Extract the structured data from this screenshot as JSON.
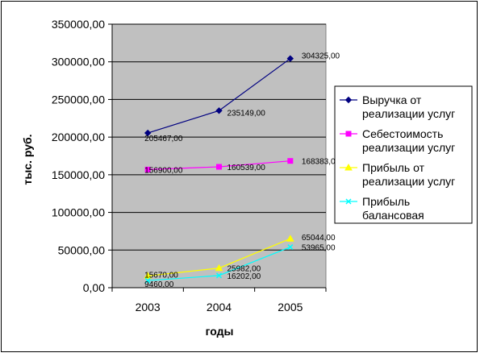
{
  "chart_data": {
    "type": "line",
    "categories": [
      "2003",
      "2004",
      "2005"
    ],
    "xlabel": "годы",
    "ylabel": "тыс. руб.",
    "ylim": [
      0,
      350000
    ],
    "yticks": [
      "0,00",
      "50000,00",
      "100000,00",
      "150000,00",
      "200000,00",
      "250000,00",
      "300000,00",
      "350000,00"
    ],
    "ytick_values": [
      0,
      50000,
      100000,
      150000,
      200000,
      250000,
      300000,
      350000
    ],
    "grid": true,
    "legend_position": "right",
    "plot_background": "#c0c0c0",
    "series": [
      {
        "name": "Выручка от реализации  услуг",
        "legend_lines": [
          "Выручка от",
          "реализации  услуг"
        ],
        "color": "#000080",
        "marker": "diamond",
        "values": [
          205467,
          235149,
          304325
        ],
        "labels": [
          "205467,00",
          "235149,00",
          "304325,00"
        ]
      },
      {
        "name": "Себестоимость реализации услуг",
        "legend_lines": [
          "Себестоимость",
          "реализации услуг"
        ],
        "color": "#ff00ff",
        "marker": "square",
        "values": [
          156900,
          160539,
          168383
        ],
        "labels": [
          "156900,00",
          "160539,00",
          "168383,00"
        ]
      },
      {
        "name": "Прибыль от реализации услуг",
        "legend_lines": [
          "Прибыль от",
          "реализации услуг"
        ],
        "color": "#ffff00",
        "marker": "triangle",
        "values": [
          15670,
          25982,
          65044
        ],
        "labels": [
          "15670,00",
          "25982,00",
          "65044,00"
        ]
      },
      {
        "name": "Прибыль балансовая",
        "legend_lines": [
          "Прибыль",
          "балансовая"
        ],
        "color": "#00ffff",
        "marker": "x",
        "values": [
          9460,
          16202,
          53965
        ],
        "labels": [
          "9460,00",
          "16202,00",
          "53965,00"
        ]
      }
    ]
  }
}
